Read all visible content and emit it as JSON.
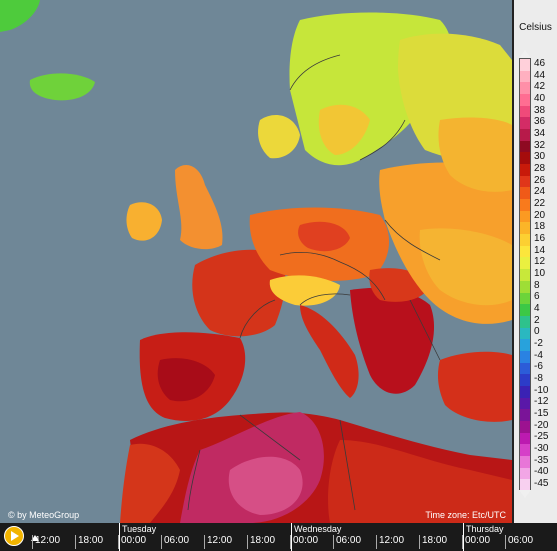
{
  "legend": {
    "title": "Celsius",
    "labels": [
      "46",
      "44",
      "42",
      "40",
      "38",
      "36",
      "34",
      "32",
      "30",
      "28",
      "26",
      "24",
      "22",
      "20",
      "18",
      "16",
      "14",
      "12",
      "10",
      "8",
      "6",
      "4",
      "2",
      "0",
      "-2",
      "-4",
      "-6",
      "-8",
      "-10",
      "-12",
      "-15",
      "-20",
      "-25",
      "-30",
      "-35",
      "-40",
      "-45"
    ],
    "colors": [
      "#ffd0da",
      "#ffb0c0",
      "#ff8fa8",
      "#ff6d92",
      "#f04a7a",
      "#d32c66",
      "#b71a4a",
      "#8e0a22",
      "#a50c0c",
      "#c81a0a",
      "#e0361a",
      "#f05a18",
      "#f97a1c",
      "#fb9a22",
      "#fbb528",
      "#fcd032",
      "#fce63c",
      "#eaf040",
      "#c8e83a",
      "#9ede36",
      "#6cd43a",
      "#3cc846",
      "#2ec28c",
      "#2ab8c0",
      "#28a2dc",
      "#2a82e2",
      "#2c5cd8",
      "#2c3cc8",
      "#3a22b4",
      "#5a18a8",
      "#7a1498",
      "#9c1290",
      "#bc1ab0",
      "#d640c8",
      "#e876d8",
      "#f2a6e6",
      "#f8d0f0"
    ]
  },
  "credit": "© by MeteoGroup",
  "timezone": "Time zone: Etc/UTC",
  "timeline": {
    "days": [
      "Tuesday",
      "Wednesday",
      "Thursday"
    ],
    "times": [
      "12:00",
      "18:00",
      "00:00",
      "06:00",
      "12:00",
      "18:00",
      "00:00",
      "06:00",
      "12:00",
      "18:00",
      "00:00",
      "06:00"
    ]
  },
  "map_colors": {
    "sea": "#6f8797",
    "border": "#3a3a3a"
  }
}
